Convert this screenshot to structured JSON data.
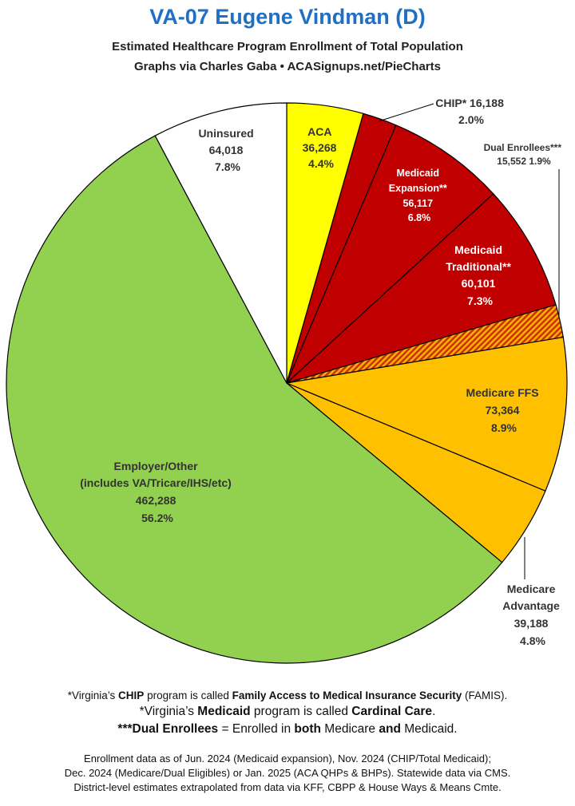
{
  "header": {
    "title": "VA-07 Eugene Vindman (D)",
    "subtitle_line1": "Estimated Healthcare Program Enrollment of Total Population",
    "subtitle_line2": "Graphs via Charles Gaba  •  ACASignups.net/PieCharts"
  },
  "chart_data": {
    "type": "pie",
    "title": "VA-07 Eugene Vindman (D)",
    "subtitle": "Estimated Healthcare Program Enrollment of Total Population",
    "slices": [
      {
        "label": "ACA",
        "value": 36268,
        "percent": "4.4%",
        "value_text": "36,268",
        "color": "#ffff00"
      },
      {
        "label": "CHIP*",
        "value": 16188,
        "percent": "2.0%",
        "value_text": "16,188",
        "color": "#c00000"
      },
      {
        "label": "Medicaid Expansion**",
        "value": 56117,
        "percent": "6.8%",
        "value_text": "56,117",
        "color": "#c00000"
      },
      {
        "label": "Medicaid Traditional**",
        "value": 60101,
        "percent": "7.3%",
        "value_text": "60,101",
        "color": "#c00000"
      },
      {
        "label": "Dual Enrollees***",
        "value": 15552,
        "percent": "1.9%",
        "value_text": "15,552",
        "color": "#e06000"
      },
      {
        "label": "Medicare FFS",
        "value": 73364,
        "percent": "8.9%",
        "value_text": "73,364",
        "color": "#ffc000"
      },
      {
        "label": "Medicare Advantage",
        "value": 39188,
        "percent": "4.8%",
        "value_text": "39,188",
        "color": "#ffc000"
      },
      {
        "label": "Employer/Other",
        "sublabel": "(includes VA/Tricare/IHS/etc)",
        "value": 462288,
        "percent": "56.2%",
        "value_text": "462,288",
        "color": "#92d050"
      },
      {
        "label": "Uninsured",
        "value": 64018,
        "percent": "7.8%",
        "value_text": "64,018",
        "color": "#ffffff"
      }
    ]
  },
  "labels": {
    "aca": {
      "name": "ACA",
      "value": "36,268",
      "pct": "4.4%"
    },
    "chip": {
      "line1": "CHIP* 16,188",
      "pct": "2.0%"
    },
    "dual": {
      "line1": "Dual Enrollees***",
      "line2": "15,552 1.9%"
    },
    "mexp": {
      "line1": "Medicaid",
      "line2": "Expansion**",
      "value": "56,117",
      "pct": "6.8%"
    },
    "mtrad": {
      "line1": "Medicaid",
      "line2": "Traditional**",
      "value": "60,101",
      "pct": "7.3%"
    },
    "mffs": {
      "name": "Medicare FFS",
      "value": "73,364",
      "pct": "8.9%"
    },
    "madv": {
      "line1": "Medicare",
      "line2": "Advantage",
      "value": "39,188",
      "pct": "4.8%"
    },
    "emp": {
      "line1": "Employer/Other",
      "line2": "(includes VA/Tricare/IHS/etc)",
      "value": "462,288",
      "pct": "56.2%"
    },
    "unins": {
      "name": "Uninsured",
      "value": "64,018",
      "pct": "7.8%"
    }
  },
  "footnotes": {
    "chip_a": "*Virginia’s ",
    "chip_b": "CHIP",
    "chip_c": " program is called ",
    "chip_d": "Family Access to Medical Insurance Security",
    "chip_e": " (FAMIS).",
    "medicaid_a": "*Virginia’s ",
    "medicaid_b": "Medicaid",
    "medicaid_c": " program is called ",
    "medicaid_d": "Cardinal Care",
    "medicaid_e": ".",
    "dual_a": "***Dual Enrollees",
    "dual_b": " = Enrolled in ",
    "dual_c": "both",
    "dual_d": " Medicare ",
    "dual_e": "and",
    "dual_f": " Medicaid."
  },
  "sources": {
    "line1": "Enrollment data as of Jun. 2024 (Medicaid expansion), Nov. 2024 (CHIP/Total Medicaid);",
    "line2": "Dec. 2024 (Medicare/Dual Eligibles) or Jan. 2025 (ACA QHPs & BHPs). Statewide data via CMS.",
    "line3": "District-level estimates extrapolated from data via KFF, CBPP & House Ways & Means Cmte."
  }
}
